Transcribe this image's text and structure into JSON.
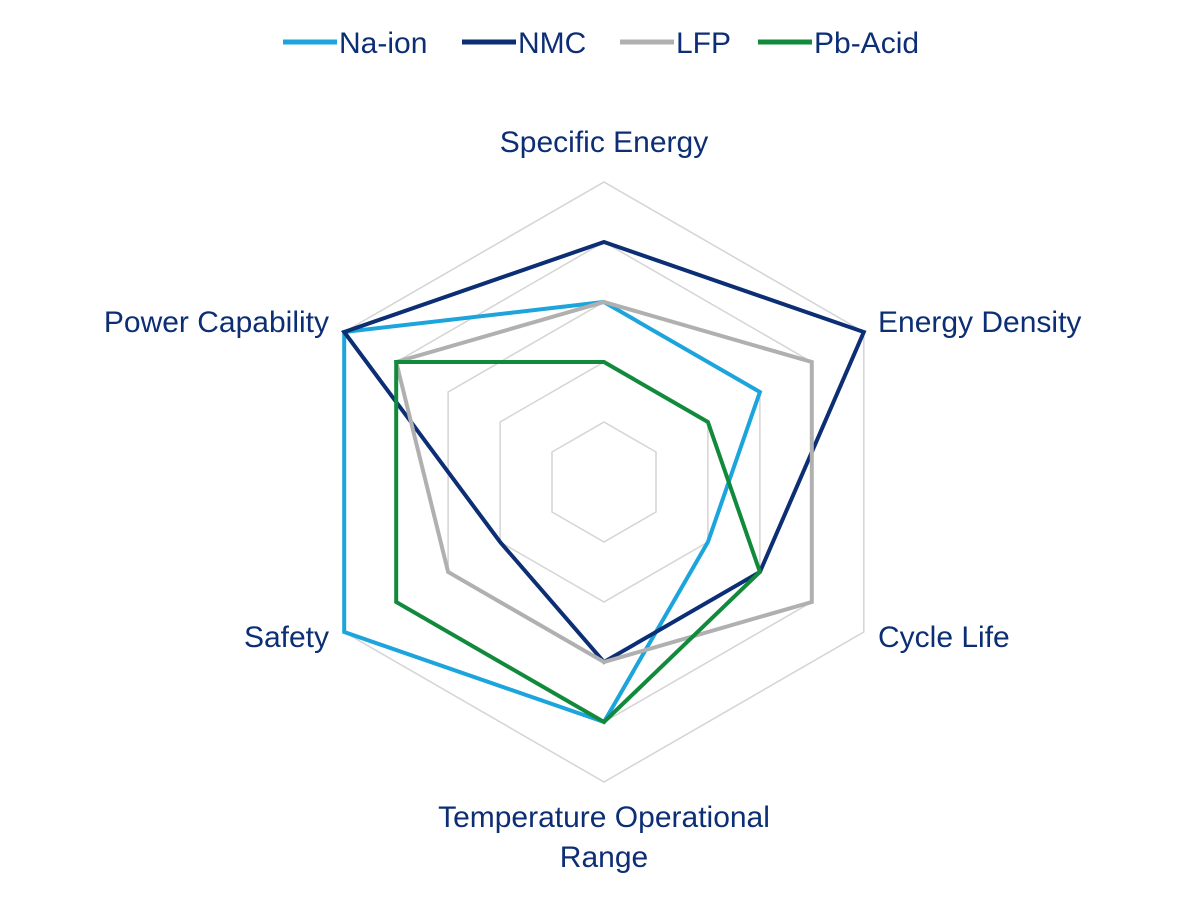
{
  "chart_data": {
    "type": "radar",
    "axes": [
      "Specific Energy",
      "Energy Density",
      "Cycle Life",
      "Temperature Operational Range",
      "Safety",
      "Power Capability"
    ],
    "axis_label_lines": [
      [
        "Specific Energy"
      ],
      [
        "Energy Density"
      ],
      [
        "Cycle Life"
      ],
      [
        "Temperature Operational",
        "Range"
      ],
      [
        "Safety"
      ],
      [
        "Power Capability"
      ]
    ],
    "scale": {
      "min": 0,
      "max": 5,
      "rings": 5
    },
    "grid": true,
    "legend_position": "top-center",
    "series": [
      {
        "name": "Na-ion",
        "color": "#1ca4dc",
        "values": [
          3,
          3,
          2,
          4,
          5,
          5
        ]
      },
      {
        "name": "NMC",
        "color": "#0c2e74",
        "values": [
          4,
          5,
          3,
          3,
          2,
          5
        ]
      },
      {
        "name": "LFP",
        "color": "#b0b0b0",
        "values": [
          3,
          4,
          4,
          3,
          3,
          4
        ]
      },
      {
        "name": "Pb-Acid",
        "color": "#128a3c",
        "values": [
          2,
          2,
          3,
          4,
          4,
          4
        ]
      }
    ],
    "colors": {
      "label": "#0c2e74",
      "grid": "#d4d4d4"
    }
  }
}
